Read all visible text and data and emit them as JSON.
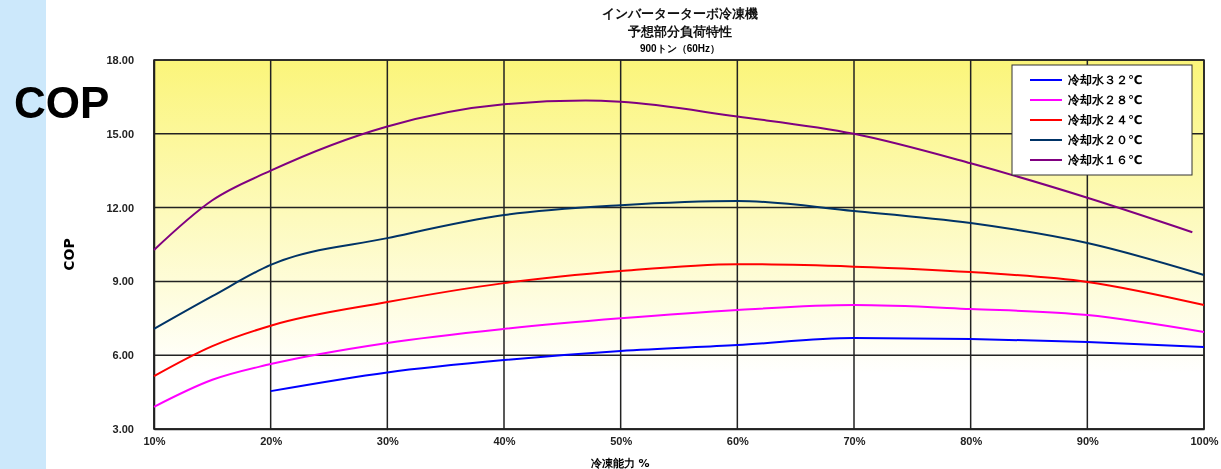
{
  "chart_data": {
    "type": "line",
    "title": "インバーターターボ冷凍機",
    "subtitle": "予想部分負荷特性",
    "xlabel": "冷凍能力 %",
    "ylabel": "COP",
    "annotations": [
      "900トン（60Hz）",
      "COP"
    ],
    "xlim": [
      10,
      100
    ],
    "xticks": [
      {
        "value": 10,
        "label": "10%"
      },
      {
        "value": 20,
        "label": "20%"
      },
      {
        "value": 30,
        "label": "30%"
      },
      {
        "value": 40,
        "label": "40%"
      },
      {
        "value": 50,
        "label": "50%"
      },
      {
        "value": 60,
        "label": "60%"
      },
      {
        "value": 70,
        "label": "70%"
      },
      {
        "value": 80,
        "label": "80%"
      },
      {
        "value": 90,
        "label": "90%"
      },
      {
        "value": 100,
        "label": "100%"
      }
    ],
    "ylim": [
      3,
      18
    ],
    "yticks": [
      {
        "value": 3,
        "label": "3.00"
      },
      {
        "value": 6,
        "label": "6.00"
      },
      {
        "value": 9,
        "label": "9.00"
      },
      {
        "value": 12,
        "label": "12.00"
      },
      {
        "value": 15,
        "label": "15.00"
      },
      {
        "value": 18,
        "label": "18.00"
      }
    ],
    "grid": true,
    "legend": "top right",
    "marker": "none",
    "line_style": "solid",
    "series": [
      {
        "name": "冷却水３２℃",
        "color": "#0000ff",
        "x": [
          20,
          30,
          40,
          50,
          60,
          70,
          80,
          90,
          100
        ],
        "values": [
          4.54,
          5.3,
          5.8,
          6.17,
          6.41,
          6.7,
          6.66,
          6.54,
          6.33
        ]
      },
      {
        "name": "冷却水２８℃",
        "color": "#ff00ff",
        "x": [
          10,
          15,
          20,
          30,
          40,
          50,
          60,
          70,
          80,
          90,
          100
        ],
        "values": [
          3.9,
          5.0,
          5.64,
          6.5,
          7.07,
          7.5,
          7.84,
          8.04,
          7.88,
          7.63,
          6.94
        ]
      },
      {
        "name": "冷却水２４℃",
        "color": "#ff0000",
        "x": [
          10,
          15,
          20,
          30,
          40,
          50,
          60,
          70,
          80,
          90,
          100
        ],
        "values": [
          5.15,
          6.37,
          7.2,
          8.16,
          8.93,
          9.42,
          9.7,
          9.6,
          9.38,
          8.98,
          8.04
        ]
      },
      {
        "name": "冷却水２０℃",
        "color": "#003366",
        "x": [
          10,
          15,
          20,
          30,
          40,
          50,
          60,
          70,
          80,
          90,
          100
        ],
        "values": [
          7.07,
          8.4,
          9.67,
          10.76,
          11.7,
          12.1,
          12.27,
          11.86,
          11.37,
          10.56,
          9.26
        ]
      },
      {
        "name": "冷却水１６℃",
        "color": "#800080",
        "x": [
          10,
          15,
          20,
          30,
          40,
          47,
          50,
          60,
          70,
          80,
          90,
          99
        ],
        "values": [
          10.28,
          12.3,
          13.5,
          15.3,
          16.2,
          16.35,
          16.3,
          15.7,
          15.0,
          13.8,
          12.4,
          11.0
        ]
      }
    ]
  }
}
